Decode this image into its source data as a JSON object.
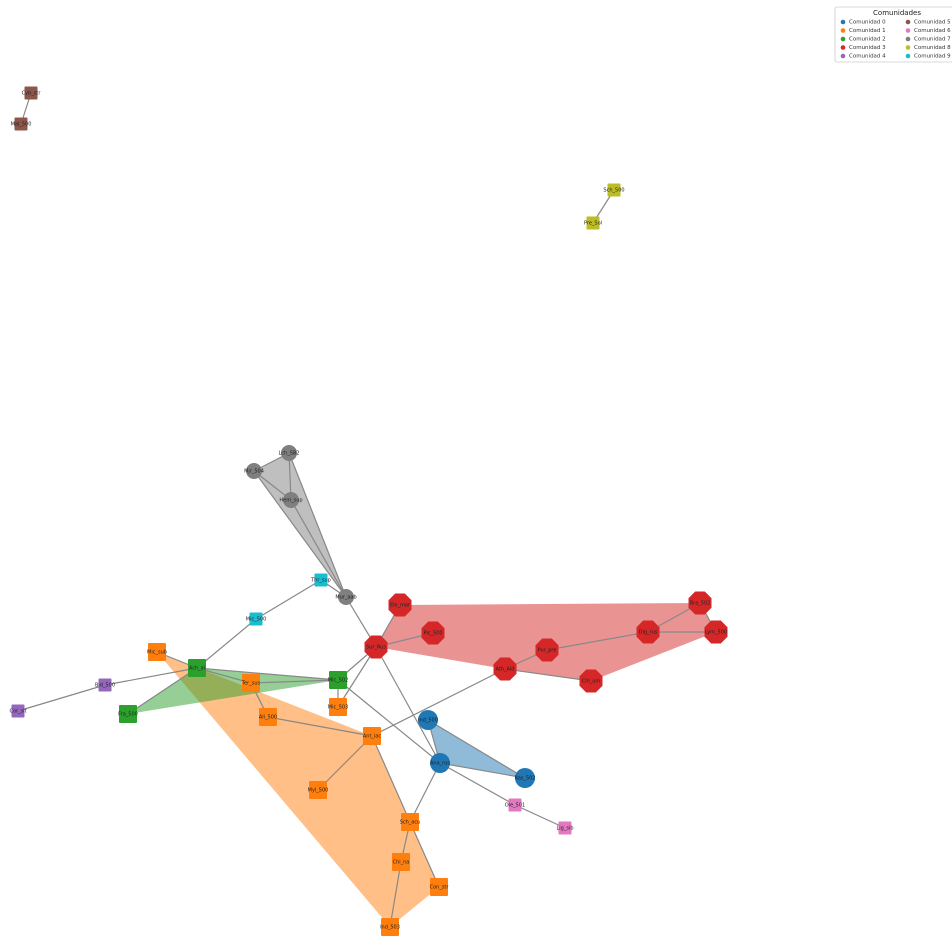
{
  "legend": {
    "title": "Comunidades",
    "items": [
      {
        "label": "Comunidad 0",
        "color": "#1f77b4"
      },
      {
        "label": "Comunidad 1",
        "color": "#ff7f0e"
      },
      {
        "label": "Comunidad 2",
        "color": "#2ca02c"
      },
      {
        "label": "Comunidad 3",
        "color": "#d62728"
      },
      {
        "label": "Comunidad 4",
        "color": "#9467bd"
      },
      {
        "label": "Comunidad 5",
        "color": "#8c564b"
      },
      {
        "label": "Comunidad 6",
        "color": "#e377c2"
      },
      {
        "label": "Comunidad 7",
        "color": "#7f7f7f"
      },
      {
        "label": "Comunidad 8",
        "color": "#bcbd22"
      },
      {
        "label": "Comunidad 9",
        "color": "#17becf"
      }
    ]
  },
  "nodes": [
    {
      "label": "Cyb_str"
    },
    {
      "label": "Mal_500"
    },
    {
      "label": "Sch_500"
    },
    {
      "label": "Pre_Sol"
    },
    {
      "label": "Lch_SB2"
    },
    {
      "label": "Mjr_504"
    },
    {
      "label": "Hem_sup"
    },
    {
      "label": "Mur_aab"
    },
    {
      "label": "Thr_sup"
    },
    {
      "label": "Mic_500"
    },
    {
      "label": "Ele_mar"
    },
    {
      "label": "Sur_Rus"
    },
    {
      "label": "Pic_500"
    },
    {
      "label": "Bra_502"
    },
    {
      "label": "Dig_rus"
    },
    {
      "label": "Lym_500"
    },
    {
      "label": "Pur_pre"
    },
    {
      "label": "Ath_Ald"
    },
    {
      "label": "Chl_um"
    },
    {
      "label": "Mic_sub"
    },
    {
      "label": "Ter_sus"
    },
    {
      "label": "Ali_500"
    },
    {
      "label": "Mic_503"
    },
    {
      "label": "Ant_iac"
    },
    {
      "label": "Myl_500"
    },
    {
      "label": "Sch_acu"
    },
    {
      "label": "Chi_na"
    },
    {
      "label": "Con_str"
    },
    {
      "label": "Ind_503"
    },
    {
      "label": "Ach_al"
    },
    {
      "label": "Mic_502"
    },
    {
      "label": "Fra_500"
    },
    {
      "label": "Bid_500"
    },
    {
      "label": "Cor_sit"
    },
    {
      "label": "Ind_500"
    },
    {
      "label": "Ana_rus"
    },
    {
      "label": "Ras_502"
    },
    {
      "label": "Ole_501"
    },
    {
      "label": "Lig_sib"
    }
  ]
}
